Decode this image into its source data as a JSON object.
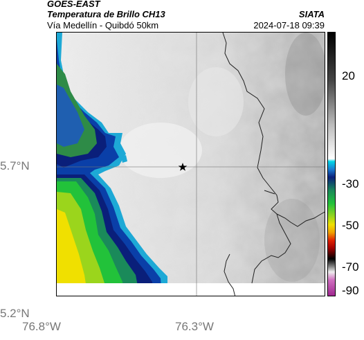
{
  "header": {
    "source": "GOES-EAST",
    "product": "Temperatura de Brillo CH13",
    "org": "SIATA",
    "location": "Vía Medellín - Quibdó 50km",
    "datetime": "2024-07-18 09:39"
  },
  "axes": {
    "y_ticks": [
      "5.7°N",
      "5.2°N"
    ],
    "x_ticks": [
      "76.8°W",
      "76.3°W"
    ]
  },
  "colorbar": {
    "ticks": [
      "20",
      "-30",
      "-50",
      "-70",
      "-90"
    ]
  },
  "colors": {
    "frame": "#000000",
    "tick_label": "#777777"
  }
}
